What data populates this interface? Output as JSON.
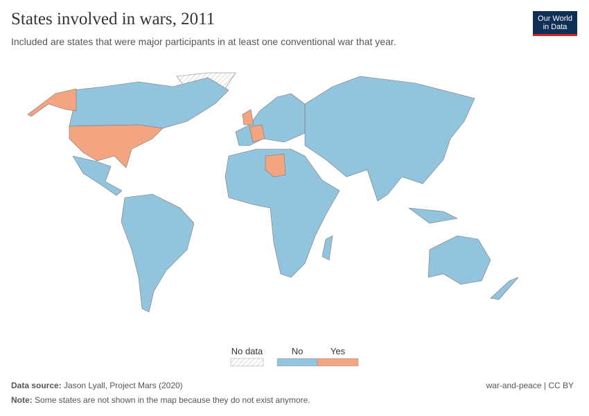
{
  "header": {
    "title": "States involved in wars, 2011",
    "subtitle": "Included are states that were major participants in at least one conventional war that year.",
    "logo": [
      "Our World",
      "in Data"
    ]
  },
  "legend": [
    {
      "label": "No data",
      "color": "#e8e8e8"
    },
    {
      "label": "No",
      "color": "#93c4de"
    },
    {
      "label": "Yes",
      "color": "#f3a582"
    }
  ],
  "footer": {
    "source_label": "Data source:",
    "source": "Jason Lyall, Project Mars (2020)",
    "license": "war-and-peace | CC BY",
    "note_label": "Note:",
    "note": "Some states are not shown in the map because they do not exist anymore."
  }
}
